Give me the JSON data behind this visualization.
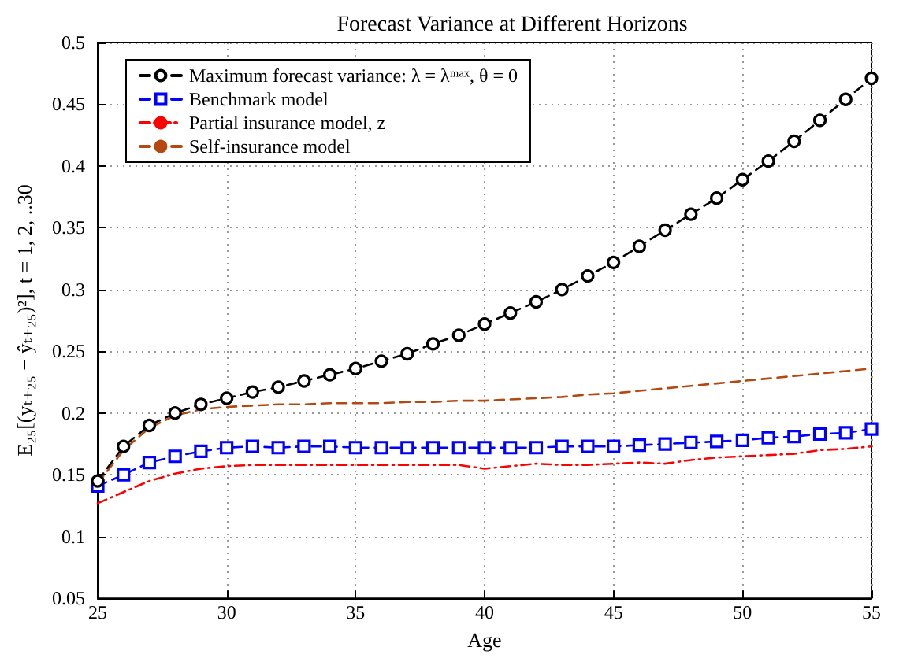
{
  "chart_data": {
    "type": "line",
    "title": "Forecast Variance at Different Horizons",
    "xlabel": "Age",
    "ylabel": "E₂₅[(yₜ₊₂₅ − ŷₜ₊₂₅)²], t = 1, 2, ..30",
    "x": [
      25,
      26,
      27,
      28,
      29,
      30,
      31,
      32,
      33,
      34,
      35,
      36,
      37,
      38,
      39,
      40,
      41,
      42,
      43,
      44,
      45,
      46,
      47,
      48,
      49,
      50,
      51,
      52,
      53,
      54,
      55
    ],
    "series": [
      {
        "name": "Maximum forecast variance: λ = λᵐᵃˣ, θ = 0",
        "color": "#000000",
        "marker": "circle",
        "line_style": "dashed",
        "values": [
          0.145,
          0.173,
          0.19,
          0.2,
          0.207,
          0.212,
          0.217,
          0.221,
          0.226,
          0.231,
          0.236,
          0.242,
          0.248,
          0.256,
          0.263,
          0.272,
          0.281,
          0.29,
          0.3,
          0.311,
          0.322,
          0.335,
          0.348,
          0.361,
          0.374,
          0.389,
          0.404,
          0.42,
          0.437,
          0.454,
          0.471
        ]
      },
      {
        "name": "Benchmark model",
        "color": "#0000ff",
        "marker": "square",
        "line_style": "dashed",
        "values": [
          0.141,
          0.15,
          0.16,
          0.165,
          0.169,
          0.172,
          0.173,
          0.172,
          0.173,
          0.173,
          0.172,
          0.172,
          0.172,
          0.172,
          0.172,
          0.172,
          0.172,
          0.172,
          0.173,
          0.173,
          0.173,
          0.174,
          0.175,
          0.176,
          0.177,
          0.178,
          0.18,
          0.181,
          0.183,
          0.184,
          0.187
        ]
      },
      {
        "name": "Partial insurance model, z",
        "color": "#ff0000",
        "marker": "none",
        "line_style": "dotted",
        "values": [
          0.127,
          0.136,
          0.145,
          0.151,
          0.155,
          0.157,
          0.158,
          0.158,
          0.158,
          0.158,
          0.158,
          0.158,
          0.158,
          0.158,
          0.158,
          0.155,
          0.157,
          0.159,
          0.158,
          0.158,
          0.159,
          0.16,
          0.159,
          0.162,
          0.164,
          0.165,
          0.166,
          0.167,
          0.17,
          0.171,
          0.173
        ]
      },
      {
        "name": "Self-insurance model",
        "color": "#b5480f",
        "marker": "none",
        "line_style": "dashed",
        "values": [
          0.143,
          0.17,
          0.188,
          0.198,
          0.203,
          0.205,
          0.206,
          0.207,
          0.207,
          0.208,
          0.208,
          0.208,
          0.209,
          0.209,
          0.21,
          0.21,
          0.211,
          0.212,
          0.213,
          0.215,
          0.216,
          0.218,
          0.22,
          0.222,
          0.224,
          0.226,
          0.228,
          0.23,
          0.232,
          0.234,
          0.236
        ]
      }
    ],
    "xlim": [
      25,
      55
    ],
    "xticks": [
      25,
      30,
      35,
      40,
      45,
      50,
      55
    ],
    "ylim": [
      0.05,
      0.5
    ],
    "yticks": [
      0.05,
      0.1,
      0.15,
      0.2,
      0.25,
      0.3,
      0.35,
      0.4,
      0.45,
      0.5
    ],
    "grid": true,
    "legend": "top left"
  }
}
